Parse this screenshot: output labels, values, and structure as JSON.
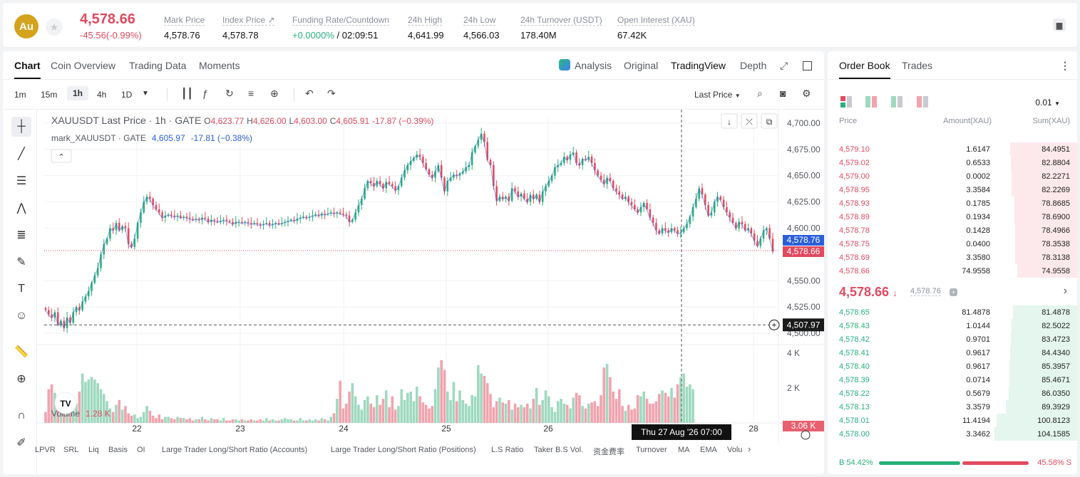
{
  "topbar": {
    "coin_badge": "Au",
    "price": "4,578.66",
    "change": "-45.56(-0.99%)",
    "stats": [
      {
        "label": "Mark Price",
        "value": "4,578.76"
      },
      {
        "label": "Index Price ↗",
        "value": "4,578.78"
      },
      {
        "label": "Funding Rate/Countdown",
        "value_green": "+0.0000%",
        "value": " / 02:09:51"
      },
      {
        "label": "24h High",
        "value": "4,641.99"
      },
      {
        "label": "24h Low",
        "value": "4,566.03"
      },
      {
        "label": "24h Turnover (USDT)",
        "value": "178.40M"
      },
      {
        "label": "Open Interest (XAU)",
        "value": "67.42K"
      }
    ]
  },
  "chart_tabs": [
    "Chart",
    "Coin Overview",
    "Trading Data",
    "Moments"
  ],
  "view_tabs": [
    "Analysis",
    "Original",
    "TradingView",
    "Depth"
  ],
  "timeframes": [
    "1m",
    "15m",
    "1h",
    "4h",
    "1D"
  ],
  "price_type": "Last Price",
  "legend": {
    "symbol": "XAUUSDT Last Price · 1h · GATE",
    "o_label": "O",
    "o": "4,623.77",
    "h_label": "H",
    "h": "4,626.00",
    "l_label": "L",
    "l": "4,603.00",
    "c_label": "C",
    "c": "4,605.91",
    "chg": "-17.87 (−0.39%)",
    "mark_label": "mark_XAUUSDT · GATE",
    "mark_val": "4,605.97",
    "mark_chg": "-17.81 (−0.38%)"
  },
  "volume_legend": {
    "label": "Volume",
    "value": "1.28 K"
  },
  "bottom_indicators": [
    "LPVR",
    "SRL",
    "Liq",
    "Basis",
    "OI",
    "Large Trader Long/Short Ratio (Accounts)",
    "Large Trader Long/Short Ratio (Positions)",
    "L.S Ratio",
    "Taker B.S Vol.",
    "资金费率",
    "Turnover",
    "MA",
    "EMA",
    "Volu"
  ],
  "colors": {
    "up": "#27b07a",
    "down": "#e24a5f",
    "upvol": "#9fd9c0",
    "downvol": "#f2a3ae",
    "mark": "#2b5fd9"
  },
  "chart_data": {
    "type": "candlestick",
    "y_ticks": [
      "4,700.00",
      "4,675.00",
      "4,650.00",
      "4,625.00",
      "4,600.00",
      "4,550.00",
      "4,525.00",
      "4,500.00"
    ],
    "ylim": [
      4496,
      4706
    ],
    "x_ticks": [
      "22",
      "23",
      "24",
      "25",
      "26",
      "28"
    ],
    "vol_ticks": [
      "4 K",
      "2 K"
    ],
    "last_price_tag": "4,578.66",
    "mark_price_tag": "4,578.76",
    "crosshair_price_tag": "4,507.97",
    "crosshair_time_tag": "Thu 27 Aug '26   07:00",
    "volume_tag": "3.06 K",
    "close_series": [
      4522,
      4518,
      4515,
      4520,
      4508,
      4512,
      4505,
      4515,
      4510,
      4520,
      4525,
      4522,
      4530,
      4535,
      4540,
      4548,
      4555,
      4562,
      4575,
      4585,
      4590,
      4600,
      4598,
      4605,
      4598,
      4602,
      4600,
      4585,
      4582,
      4590,
      4605,
      4615,
      4625,
      4630,
      4628,
      4622,
      4618,
      4615,
      4610,
      4612,
      4613,
      4612,
      4611,
      4612,
      4610,
      4611,
      4610,
      4609,
      4608,
      4609,
      4608,
      4610,
      4609,
      4606,
      4608,
      4607,
      4606,
      4607,
      4608,
      4607,
      4606,
      4604,
      4606,
      4606,
      4605,
      4606,
      4605,
      4604,
      4605,
      4604,
      4603,
      4604,
      4605,
      4603,
      4604,
      4605,
      4604,
      4605,
      4606,
      4607,
      4608,
      4607,
      4609,
      4610,
      4611,
      4610,
      4611,
      4612,
      4613,
      4612,
      4614,
      4613,
      4614,
      4615,
      4614,
      4615,
      4614,
      4613,
      4612,
      4606,
      4608,
      4615,
      4622,
      4628,
      4638,
      4645,
      4643,
      4640,
      4645,
      4642,
      4638,
      4644,
      4642,
      4640,
      4636,
      4640,
      4648,
      4655,
      4660,
      4664,
      4667,
      4670,
      4668,
      4662,
      4656,
      4651,
      4648,
      4654,
      4660,
      4648,
      4635,
      4645,
      4648,
      4651,
      4650,
      4652,
      4654,
      4658,
      4660,
      4672,
      4678,
      4684,
      4690,
      4682,
      4665,
      4660,
      4640,
      4626,
      4630,
      4628,
      4630,
      4626,
      4638,
      4635,
      4630,
      4633,
      4628,
      4625,
      4632,
      4628,
      4632,
      4625,
      4635,
      4640,
      4645,
      4650,
      4658,
      4660,
      4662,
      4668,
      4665,
      4670,
      4672,
      4662,
      4660,
      4666,
      4665,
      4668,
      4662,
      4655,
      4650,
      4646,
      4642,
      4648,
      4645,
      4638,
      4635,
      4632,
      4628,
      4630,
      4625,
      4622,
      4618,
      4615,
      4620,
      4624,
      4618,
      4610,
      4605,
      4598,
      4595,
      4600,
      4598,
      4596,
      4600,
      4598,
      4595,
      4596,
      4600,
      4604,
      4611,
      4620,
      4628,
      4638,
      4632,
      4622,
      4612,
      4615,
      4625,
      4630,
      4627,
      4620,
      4615,
      4610,
      4605,
      4600,
      4606,
      4604,
      4598,
      4600,
      4595,
      4588,
      4583,
      4590,
      4598,
      4600,
      4590,
      4578
    ],
    "volume_series": [
      0.9,
      2.8,
      3.2,
      2.5,
      2.0,
      1.2,
      1.0,
      0.8,
      1.4,
      1.8,
      1.6,
      2.6,
      4.1,
      3.4,
      3.6,
      3.8,
      3.6,
      3.3,
      2.8,
      2.4,
      1.8,
      1.2,
      0.9,
      1.5,
      1.9,
      1.1,
      1.4,
      0.8,
      0.6,
      0.7,
      0.4,
      0.5,
      0.9,
      1.4,
      1.0,
      0.6,
      0.4,
      0.7,
      0.3,
      0.5,
      0.5,
      0.4,
      0.3,
      0.5,
      0.4,
      0.4,
      0.3,
      0.4,
      0.2,
      0.3,
      0.3,
      0.5,
      0.3,
      0.2,
      0.4,
      0.3,
      0.3,
      0.2,
      0.4,
      0.2,
      0.2,
      0.3,
      0.3,
      0.2,
      0.3,
      0.2,
      0.2,
      0.3,
      0.2,
      0.2,
      0.3,
      0.2,
      0.4,
      0.2,
      0.3,
      0.2,
      0.2,
      0.3,
      0.4,
      0.3,
      0.3,
      0.2,
      0.2,
      0.4,
      0.2,
      0.2,
      0.3,
      0.2,
      0.3,
      0.2,
      0.4,
      0.3,
      0.2,
      0.5,
      0.8,
      2.0,
      3.5,
      1.2,
      1.6,
      2.6,
      3.3,
      2.2,
      1.5,
      1.1,
      1.9,
      2.2,
      1.6,
      1.3,
      2.3,
      1.5,
      2.0,
      2.7,
      1.3,
      2.2,
      1.1,
      1.4,
      2.8,
      1.9,
      2.5,
      2.6,
      1.8,
      3.0,
      2.2,
      1.7,
      1.5,
      1.2,
      1.4,
      2.8,
      4.6,
      5.2,
      4.4,
      2.6,
      1.9,
      3.4,
      1.8,
      2.7,
      1.9,
      1.6,
      1.4,
      2.3,
      2.2,
      4.8,
      4.1,
      3.9,
      3.3,
      2.4,
      1.3,
      1.8,
      2.1,
      1.7,
      1.6,
      1.9,
      1.1,
      1.6,
      1.3,
      1.5,
      1.3,
      1.6,
      1.2,
      2.0,
      2.9,
      1.5,
      1.9,
      2.7,
      2.2,
      1.3,
      0.9,
      1.8,
      2.0,
      1.6,
      1.5,
      1.2,
      2.1,
      2.5,
      2.3,
      1.4,
      1.2,
      1.6,
      1.7,
      1.8,
      1.4,
      2.3,
      4.6,
      4.9,
      3.8,
      2.6,
      2.0,
      2.8,
      1.4,
      1.0,
      1.5,
      1.1,
      1.2,
      2.3,
      2.2,
      2.6,
      2.0,
      1.6,
      1.6,
      1.8,
      2.4,
      2.7,
      2.5,
      2.2,
      2.9,
      2.1,
      3.2,
      3.8,
      4.1,
      3.0,
      3.2,
      2.8
    ]
  },
  "orderbook": {
    "tabs": [
      "Order Book",
      "Trades"
    ],
    "precision": "0.01",
    "headers": {
      "price": "Price",
      "amount": "Amount(XAU)",
      "sum": "Sum(XAU)"
    },
    "asks": [
      {
        "price": "4,579.10",
        "amount": "1.6147",
        "sum": "84.4951",
        "fill": 0.81
      },
      {
        "price": "4,579.02",
        "amount": "0.6533",
        "sum": "82.8804",
        "fill": 0.8
      },
      {
        "price": "4,579.00",
        "amount": "0.0002",
        "sum": "82.2271",
        "fill": 0.79
      },
      {
        "price": "4,578.95",
        "amount": "3.3584",
        "sum": "82.2269",
        "fill": 0.79
      },
      {
        "price": "4,578.93",
        "amount": "0.1785",
        "sum": "78.8685",
        "fill": 0.76
      },
      {
        "price": "4,578.89",
        "amount": "0.1934",
        "sum": "78.6900",
        "fill": 0.76
      },
      {
        "price": "4,578.78",
        "amount": "0.1428",
        "sum": "78.4966",
        "fill": 0.75
      },
      {
        "price": "4,578.75",
        "amount": "0.0400",
        "sum": "78.3538",
        "fill": 0.75
      },
      {
        "price": "4,578.69",
        "amount": "3.3580",
        "sum": "78.3138",
        "fill": 0.75
      },
      {
        "price": "4,578.66",
        "amount": "74.9558",
        "sum": "74.9558",
        "fill": 0.72
      }
    ],
    "mid": {
      "price": "4,578.66",
      "arrow": "↓",
      "mark": "4,578.76"
    },
    "bids": [
      {
        "price": "4,578.65",
        "amount": "81.4878",
        "sum": "81.4878",
        "fill": 0.78
      },
      {
        "price": "4,578.43",
        "amount": "1.0144",
        "sum": "82.5022",
        "fill": 0.79
      },
      {
        "price": "4,578.42",
        "amount": "0.9701",
        "sum": "83.4723",
        "fill": 0.8
      },
      {
        "price": "4,578.41",
        "amount": "0.9617",
        "sum": "84.4340",
        "fill": 0.81
      },
      {
        "price": "4,578.40",
        "amount": "0.9617",
        "sum": "85.3957",
        "fill": 0.82
      },
      {
        "price": "4,578.39",
        "amount": "0.0714",
        "sum": "85.4671",
        "fill": 0.82
      },
      {
        "price": "4,578.22",
        "amount": "0.5679",
        "sum": "86.0350",
        "fill": 0.83
      },
      {
        "price": "4,578.13",
        "amount": "3.3579",
        "sum": "89.3929",
        "fill": 0.86
      },
      {
        "price": "4,578.01",
        "amount": "11.4194",
        "sum": "100.8123",
        "fill": 0.97
      },
      {
        "price": "4,578.00",
        "amount": "3.3462",
        "sum": "104.1585",
        "fill": 1.0
      }
    ],
    "buy_ratio": "B 54.42%",
    "sell_ratio": "45.58% S",
    "buy_fraction": 0.5442
  }
}
